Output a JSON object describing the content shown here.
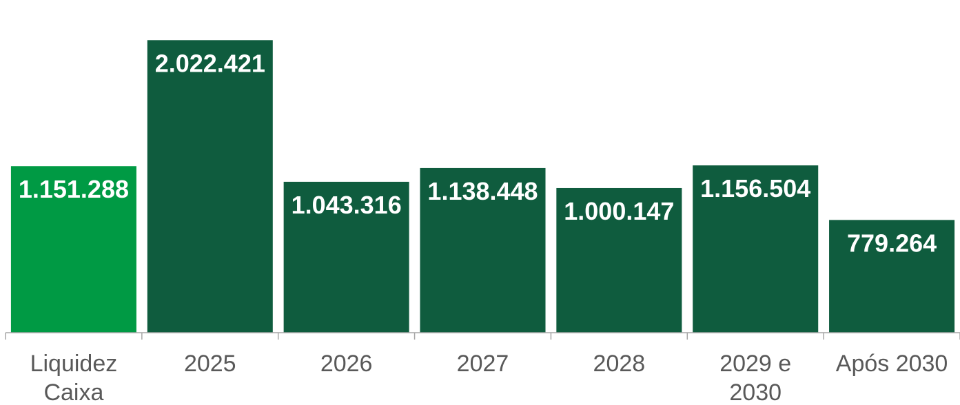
{
  "chart_data": {
    "type": "bar",
    "categories": [
      [
        "Liquidez",
        "Caixa"
      ],
      [
        "2025"
      ],
      [
        "2026"
      ],
      [
        "2027"
      ],
      [
        "2028"
      ],
      [
        "2029 e",
        "2030"
      ],
      [
        "Após 2030"
      ]
    ],
    "values": [
      1151288,
      2022421,
      1043316,
      1138448,
      1000147,
      1156504,
      779264
    ],
    "value_labels": [
      "1.151.288",
      "2.022.421",
      "1.043.316",
      "1.138.448",
      "1.000.147",
      "1.156.504",
      "779.264"
    ],
    "colors": [
      "#009a44",
      "#0f5c3e",
      "#0f5c3e",
      "#0f5c3e",
      "#0f5c3e",
      "#0f5c3e",
      "#0f5c3e"
    ],
    "ylim": [
      0,
      2200000
    ],
    "grid": false,
    "legend": "none"
  }
}
